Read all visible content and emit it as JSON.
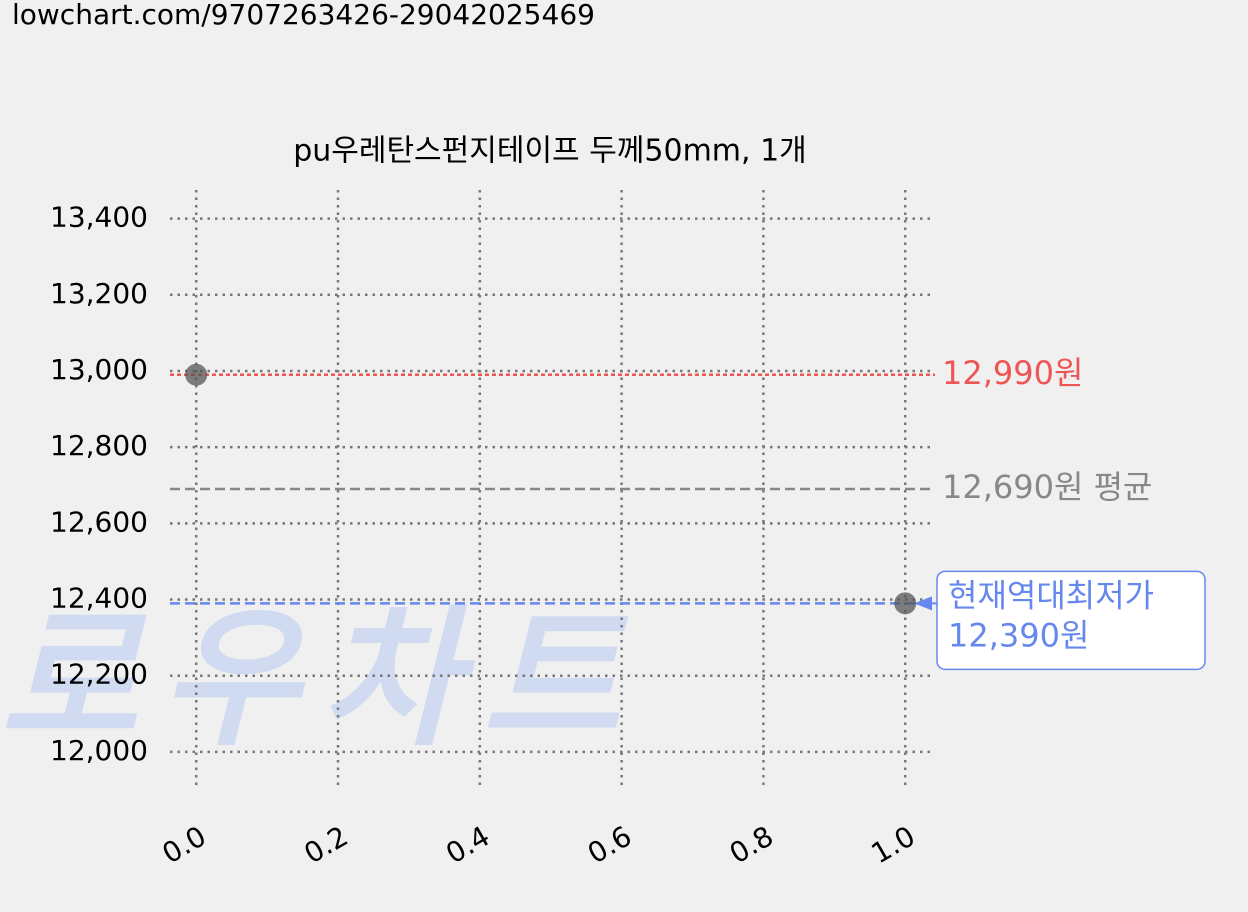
{
  "url": "lowchart.com/9707263426-29042025469",
  "watermark": "로우차트",
  "chart_data": {
    "type": "line",
    "title": "pu우레탄스펀지테이프 두께50mm, 1개",
    "xlim": [
      -0.037,
      1.042
    ],
    "ylim": [
      11900,
      13475
    ],
    "xticks": [
      {
        "value": 0,
        "label": "0.0"
      },
      {
        "value": 0.2,
        "label": "0.2"
      },
      {
        "value": 0.4,
        "label": "0.4"
      },
      {
        "value": 0.6,
        "label": "0.6"
      },
      {
        "value": 0.8,
        "label": "0.8"
      },
      {
        "value": 1,
        "label": "1.0"
      }
    ],
    "yticks": [
      {
        "value": 12000,
        "label": "12,000"
      },
      {
        "value": 12200,
        "label": "12,200"
      },
      {
        "value": 12400,
        "label": "12,400"
      },
      {
        "value": 12600,
        "label": "12,600"
      },
      {
        "value": 12800,
        "label": "12,800"
      },
      {
        "value": 13000,
        "label": "13,000"
      },
      {
        "value": 13200,
        "label": "13,200"
      },
      {
        "value": 13400,
        "label": "13,400"
      }
    ],
    "grid": true,
    "series": [
      {
        "color": "#000000",
        "style": "solid",
        "x": [
          0,
          0,
          1
        ],
        "values": [
          12990,
          12390,
          12390
        ]
      },
      {
        "color": "#777777",
        "style": "dashed",
        "markers": true,
        "x": [
          0,
          1
        ],
        "values": [
          12990,
          12390
        ]
      }
    ],
    "reference_lines": [
      {
        "value": 12990,
        "color": "#ee5555",
        "style": "dotted",
        "label": "12,990원"
      },
      {
        "value": 12690,
        "color": "#888888",
        "style": "dashed",
        "label": "12,690원 평균"
      },
      {
        "value": 12390,
        "color": "#6688ee",
        "style": "dashed",
        "note": "현재역대최저가",
        "label": "12,390원"
      }
    ]
  }
}
